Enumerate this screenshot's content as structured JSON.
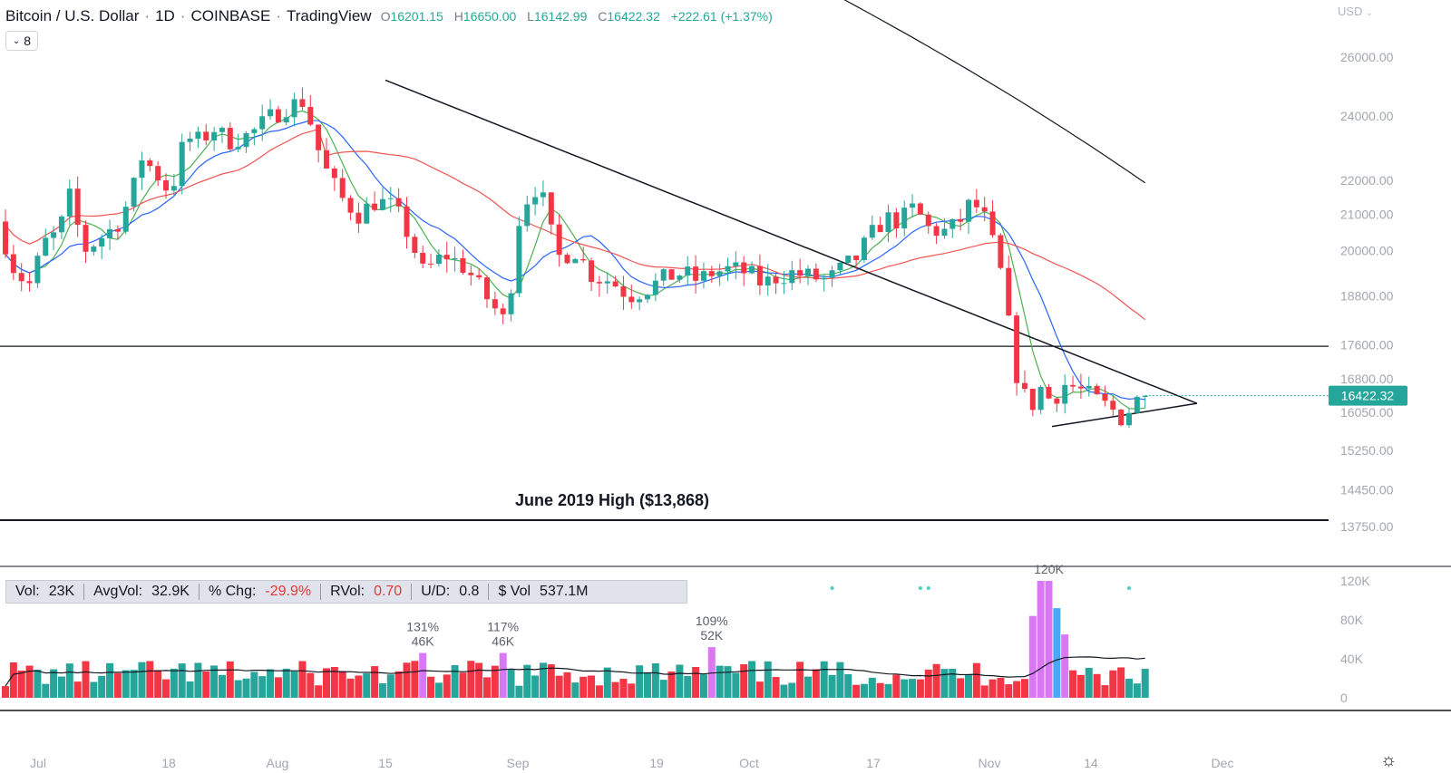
{
  "header": {
    "symbol": "Bitcoin / U.S. Dollar",
    "interval": "1D",
    "exchange": "COINBASE",
    "source": "TradingView",
    "open_label": "O",
    "open": "16201.15",
    "high_label": "H",
    "high": "16650.00",
    "low_label": "L",
    "low": "16142.99",
    "close_label": "C",
    "close": "16422.32",
    "change": "+222.61 (+1.37%)"
  },
  "indicators_button": {
    "icon": "chevron-down-icon",
    "count": "8"
  },
  "currency_selector": "USD",
  "stats": {
    "vol_label": "Vol:",
    "vol": "23K",
    "avgvol_label": "AvgVol:",
    "avgvol": "32.9K",
    "pchg_label": "% Chg:",
    "pchg": "-29.9%",
    "rvol_label": "RVol:",
    "rvol": "0.70",
    "ud_label": "U/D:",
    "ud": "0.8",
    "dvol_label": "$ Vol",
    "dvol": "537.1M"
  },
  "colors": {
    "up": "#26a69a",
    "down": "#f23645",
    "highlight_up": "#4aa8f7",
    "highlight_down": "#d977f5",
    "ma_green": "#4caf50",
    "ma_blue": "#2962ff",
    "ma_red": "#ef5350",
    "ma_black": "#131722",
    "price_tag": "#26a69a"
  },
  "settings_icon": "gear-icon",
  "chart_data": {
    "type": "candlestick",
    "scale": "log",
    "price_ticks": [
      "26000.00",
      "24000.00",
      "22000.00",
      "21000.00",
      "20000.00",
      "18800.00",
      "17600.00",
      "16800.00",
      "16050.00",
      "15250.00",
      "14450.00",
      "13750.00"
    ],
    "x_ticks": [
      "Jul",
      "18",
      "Aug",
      "15",
      "Sep",
      "19",
      "Oct",
      "17",
      "Nov",
      "14",
      "Dec"
    ],
    "last_price": "16422.32",
    "horizontal_lines": [
      {
        "price": 17560
      },
      {
        "price": 13868,
        "label": "June 2019 High ($13,868)"
      }
    ],
    "trendlines": [
      {
        "from": [
          "Aug 14",
          25200
        ],
        "to": [
          "Nov 22",
          16250
        ]
      },
      {
        "from": [
          "Nov 9",
          15750
        ],
        "to": [
          "Nov 22",
          16250
        ]
      }
    ],
    "candles_count": 143,
    "volume": {
      "y_ticks": [
        "120K",
        "80K",
        "40K",
        "0"
      ],
      "annotations": [
        {
          "index": 52,
          "pct": "131%",
          "vol": "46K"
        },
        {
          "index": 62,
          "pct": "117%",
          "vol": "46K"
        },
        {
          "index": 88,
          "pct": "109%",
          "vol": "52K"
        },
        {
          "index": 130,
          "vol": "120K"
        }
      ]
    }
  }
}
